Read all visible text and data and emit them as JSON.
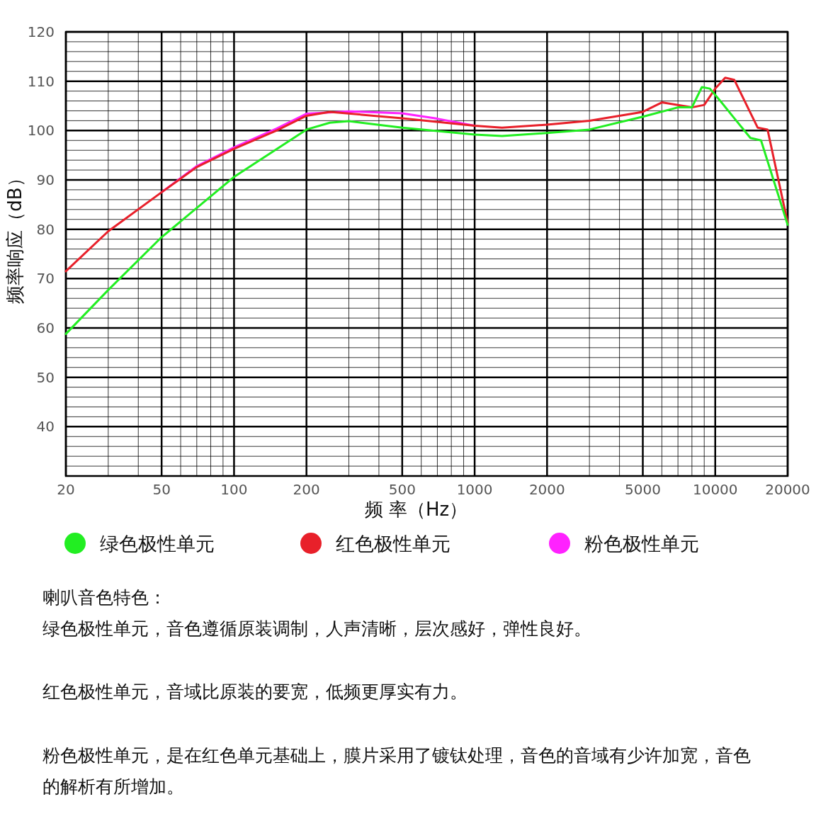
{
  "chart_data": {
    "type": "line",
    "xlabel": "频 率（Hz）",
    "ylabel": "频率响应（dB）",
    "log": "x",
    "xlim": [
      20,
      20000
    ],
    "xticks": [
      20,
      50,
      100,
      200,
      500,
      1000,
      2000,
      5000,
      10000,
      20000
    ],
    "ylim": [
      30,
      120
    ],
    "yticks": [
      40,
      50,
      60,
      70,
      80,
      90,
      100,
      110,
      120
    ],
    "grid": true,
    "legend": "bottom",
    "line_style": "solid",
    "marker": "none",
    "series": [
      {
        "name": "绿色极性单元",
        "color": "#22ee22",
        "x": [
          20,
          30,
          50,
          100,
          200,
          250,
          300,
          500,
          1000,
          1300,
          2000,
          3000,
          5000,
          7000,
          8000,
          8800,
          9500,
          10500,
          12000,
          14000,
          15500,
          20000
        ],
        "values": [
          58.8,
          67.7,
          78.4,
          90.6,
          100.2,
          101.6,
          101.9,
          100.6,
          99.2,
          98.9,
          99.5,
          100.2,
          102.8,
          104.7,
          104.7,
          108.8,
          108.5,
          106,
          102.5,
          98.5,
          98,
          80.9
        ]
      },
      {
        "name": "红色极性单元",
        "color": "#e8202a",
        "x": [
          20,
          30,
          50,
          70,
          100,
          150,
          200,
          250,
          500,
          1000,
          1300,
          2000,
          3000,
          5000,
          6000,
          8000,
          9000,
          10000,
          11000,
          12000,
          15000,
          16500,
          20000
        ],
        "values": [
          71.5,
          79.6,
          87.5,
          92.6,
          96.3,
          100,
          103,
          103.8,
          102.5,
          101,
          100.6,
          101.2,
          102,
          103.8,
          105.7,
          104.7,
          105.2,
          108.5,
          110.7,
          110.3,
          100.6,
          100.2,
          81.3
        ]
      },
      {
        "name": "粉色极性单元",
        "color": "#ff22ff",
        "x": [
          50,
          70,
          100,
          150,
          200,
          300,
          500,
          700,
          1000
        ],
        "values": [
          87.5,
          92.8,
          96.6,
          100.4,
          103.4,
          103.9,
          103.5,
          102.4,
          101
        ]
      }
    ],
    "annotations": [
      "喇叭音色特色：",
      "绿色极性单元，音色遵循原装调制，人声清晰，层次感好，弹性良好。",
      "红色极性单元，音域比原装的要宽，低频更厚实有力。",
      "粉色极性单元，是在红色单元基础上，膜片采用了镀钛处理，音色的音域有少许加宽，音色的解析有所增加。"
    ]
  }
}
